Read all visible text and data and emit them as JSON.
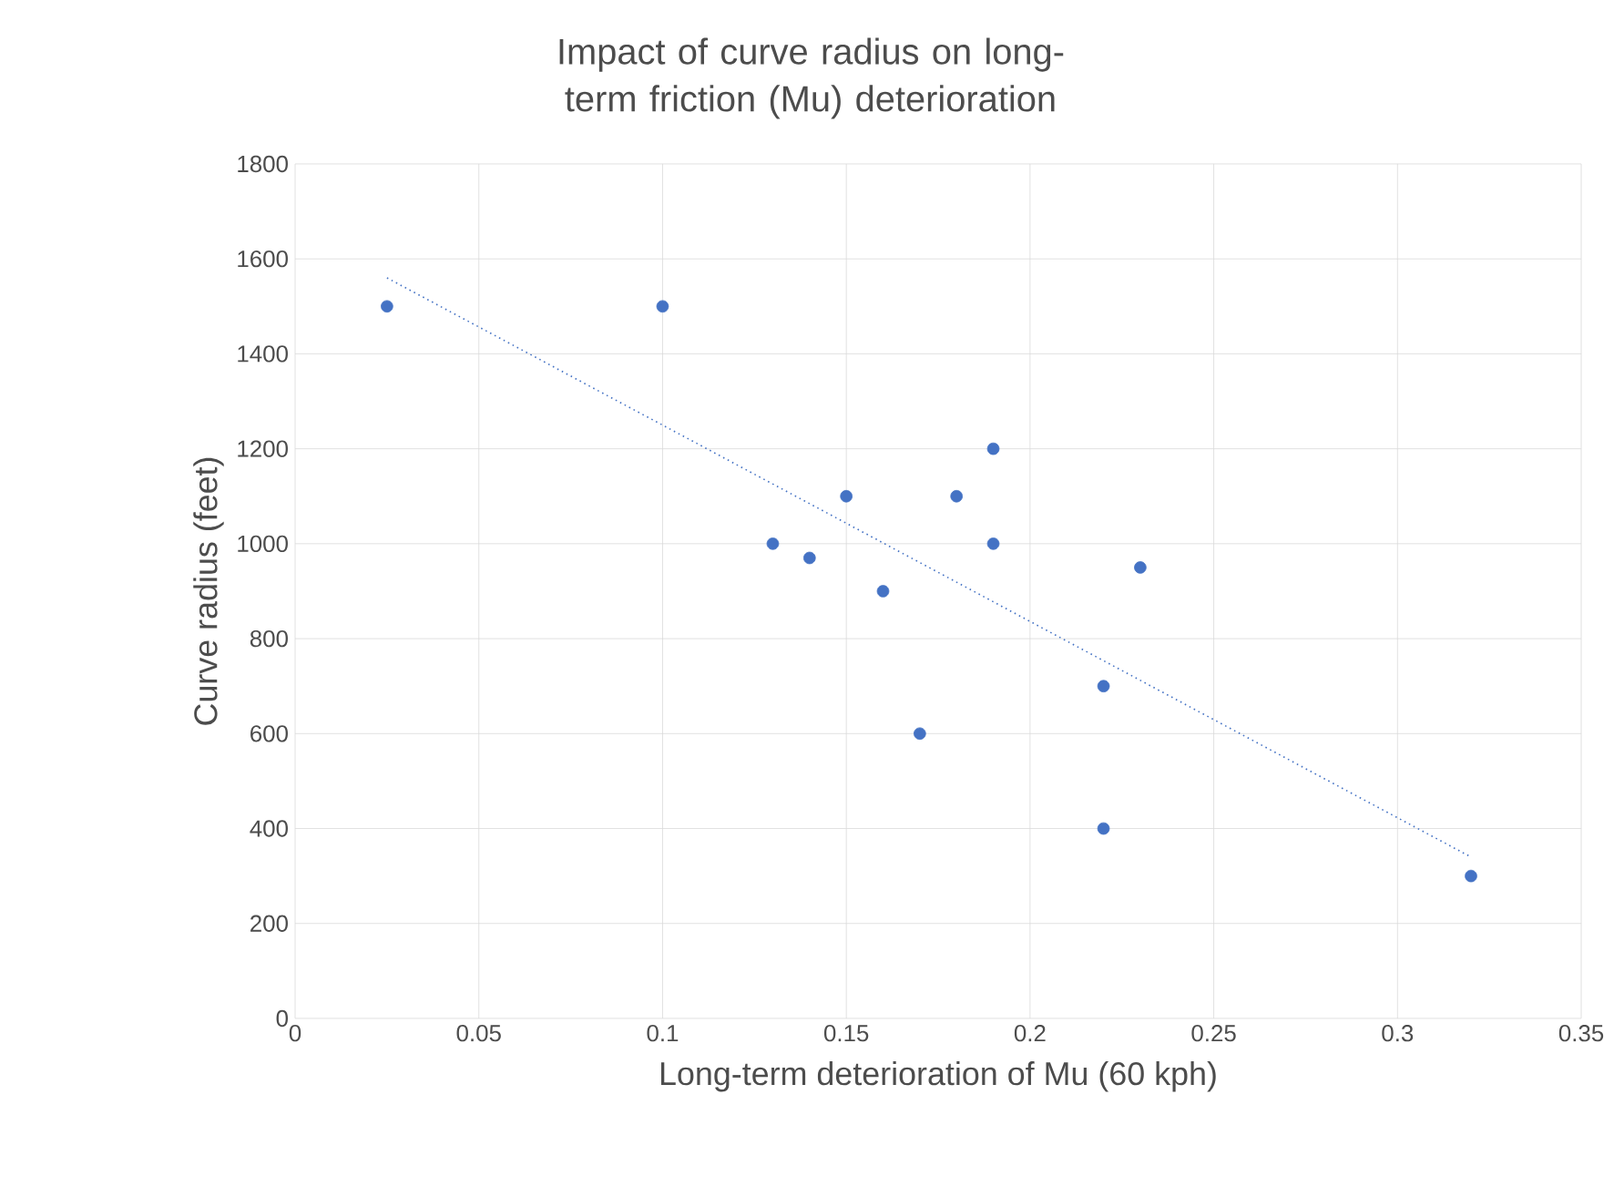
{
  "chart_data": {
    "type": "scatter",
    "title": "Impact of curve radius on long-term friction (Mu) deterioration",
    "xlabel": "Long-term deterioration of Mu (60 kph)",
    "ylabel": "Curve radius (feet)",
    "xlim": [
      0,
      0.35
    ],
    "xticks": [
      0,
      0.05,
      0.1,
      0.15,
      0.2,
      0.25,
      0.3,
      0.35
    ],
    "ylim": [
      0,
      1800
    ],
    "yticks": [
      0,
      200,
      400,
      600,
      800,
      1000,
      1200,
      1400,
      1600,
      1800
    ],
    "grid": true,
    "marker": "circle",
    "series": [
      {
        "color": "#4472c4",
        "x": [
          0.025,
          0.1,
          0.13,
          0.14,
          0.15,
          0.16,
          0.17,
          0.18,
          0.19,
          0.19,
          0.22,
          0.22,
          0.23,
          0.32
        ],
        "values": [
          1500,
          1500,
          1000,
          970,
          1100,
          900,
          600,
          1100,
          1200,
          1000,
          700,
          400,
          950,
          300
        ]
      },
      {
        "type": "line",
        "color": "#4472c4",
        "line_style": "dotted",
        "marker": "none",
        "x": [
          0.025,
          0.32
        ],
        "values": [
          1560,
          340
        ]
      }
    ]
  }
}
